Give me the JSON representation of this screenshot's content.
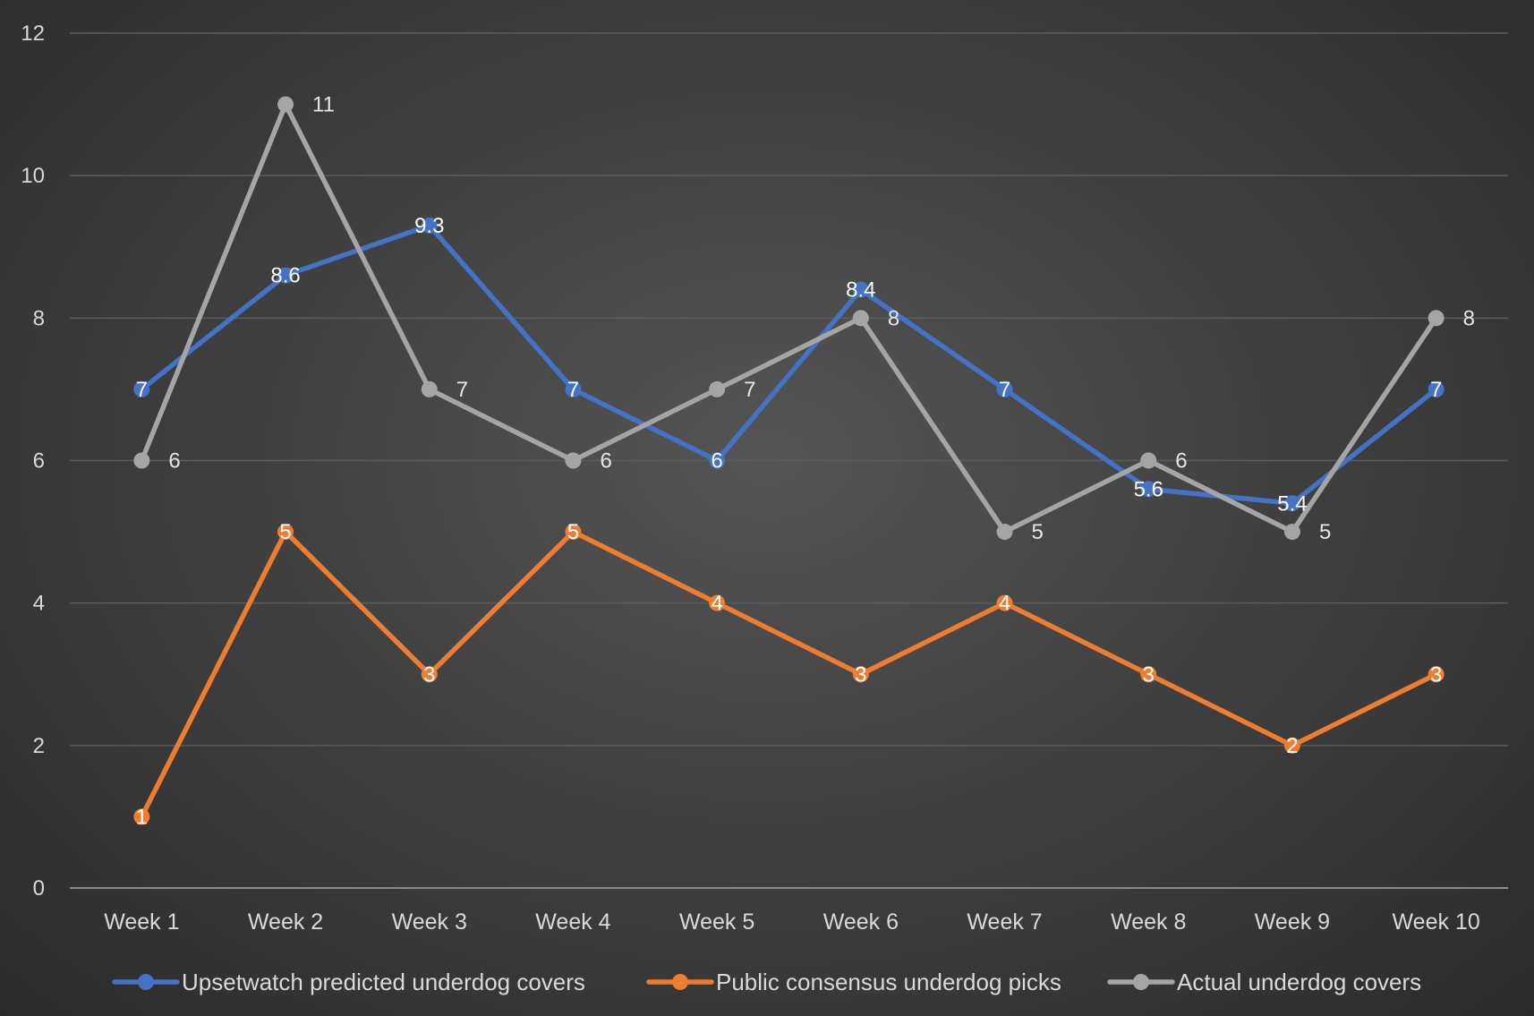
{
  "chart_data": {
    "type": "line",
    "title": "",
    "xlabel": "",
    "ylabel": "",
    "ylim": [
      0,
      12
    ],
    "yticks": [
      0,
      2,
      4,
      6,
      8,
      10,
      12
    ],
    "grid": true,
    "legend_position": "bottom",
    "categories": [
      "Week 1",
      "Week 2",
      "Week 3",
      "Week 4",
      "Week 5",
      "Week 6",
      "Week 7",
      "Week 8",
      "Week 9",
      "Week 10"
    ],
    "series": [
      {
        "name": "Upsetwatch predicted underdog covers",
        "color": "#4472c4",
        "values": [
          7,
          8.6,
          9.3,
          7,
          6,
          8.4,
          7,
          5.6,
          5.4,
          7
        ],
        "label_placement": "center",
        "label_color": "#ffffff"
      },
      {
        "name": "Public consensus underdog picks",
        "color": "#ed7d31",
        "values": [
          1,
          5,
          3,
          5,
          4,
          3,
          4,
          3,
          2,
          3
        ],
        "label_placement": "center",
        "label_color": "#ffffff"
      },
      {
        "name": "Actual underdog covers",
        "color": "#a5a5a5",
        "values": [
          6,
          11,
          7,
          6,
          7,
          8,
          5,
          6,
          5,
          8
        ],
        "label_placement": "right",
        "label_color": "#e6e6e6"
      }
    ]
  }
}
